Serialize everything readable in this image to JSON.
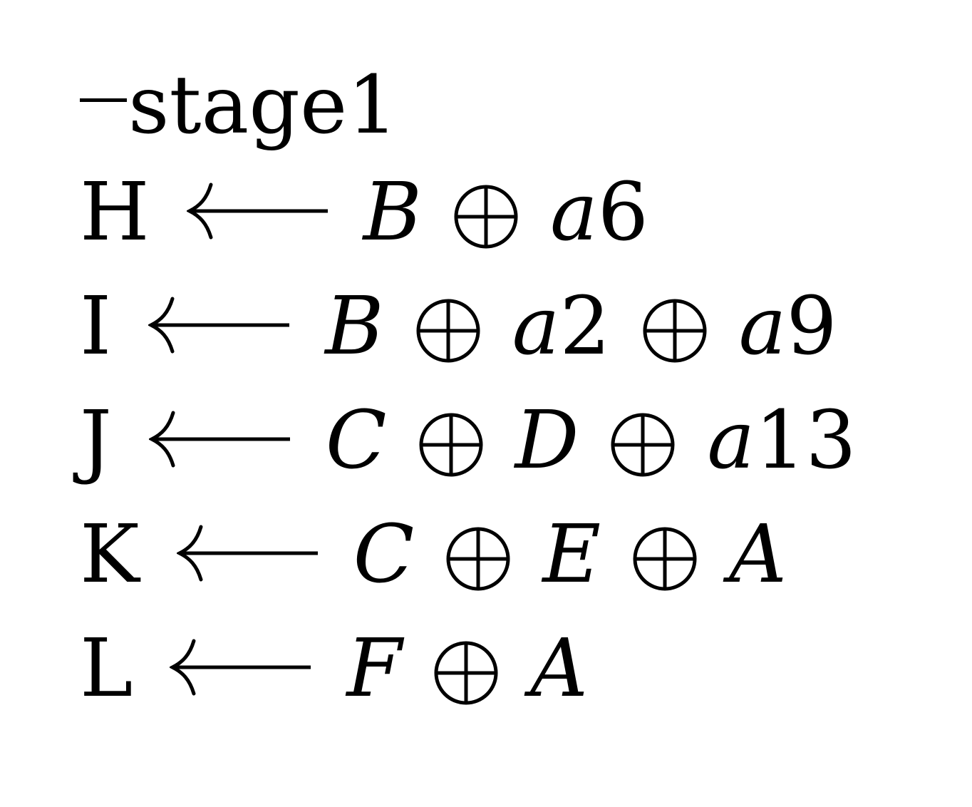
{
  "title": "stage1",
  "lines": [
    {
      "lhs": "H",
      "terms": [
        {
          "var": "B",
          "num": ""
        },
        {
          "var": "a",
          "num": "6"
        }
      ]
    },
    {
      "lhs": "I",
      "terms": [
        {
          "var": "B",
          "num": ""
        },
        {
          "var": "a",
          "num": "2"
        },
        {
          "var": "a",
          "num": "9"
        }
      ]
    },
    {
      "lhs": "J",
      "terms": [
        {
          "var": "C",
          "num": ""
        },
        {
          "var": "D",
          "num": ""
        },
        {
          "var": "a",
          "num": "13"
        }
      ]
    },
    {
      "lhs": "K",
      "terms": [
        {
          "var": "C",
          "num": ""
        },
        {
          "var": "E",
          "num": ""
        },
        {
          "var": "A",
          "num": ""
        }
      ]
    },
    {
      "lhs": "L",
      "terms": [
        {
          "var": "F",
          "num": ""
        },
        {
          "var": "A",
          "num": ""
        }
      ]
    }
  ],
  "icons": {
    "arrow": "long-left-arrow-icon",
    "xor": "circled-plus-icon"
  }
}
